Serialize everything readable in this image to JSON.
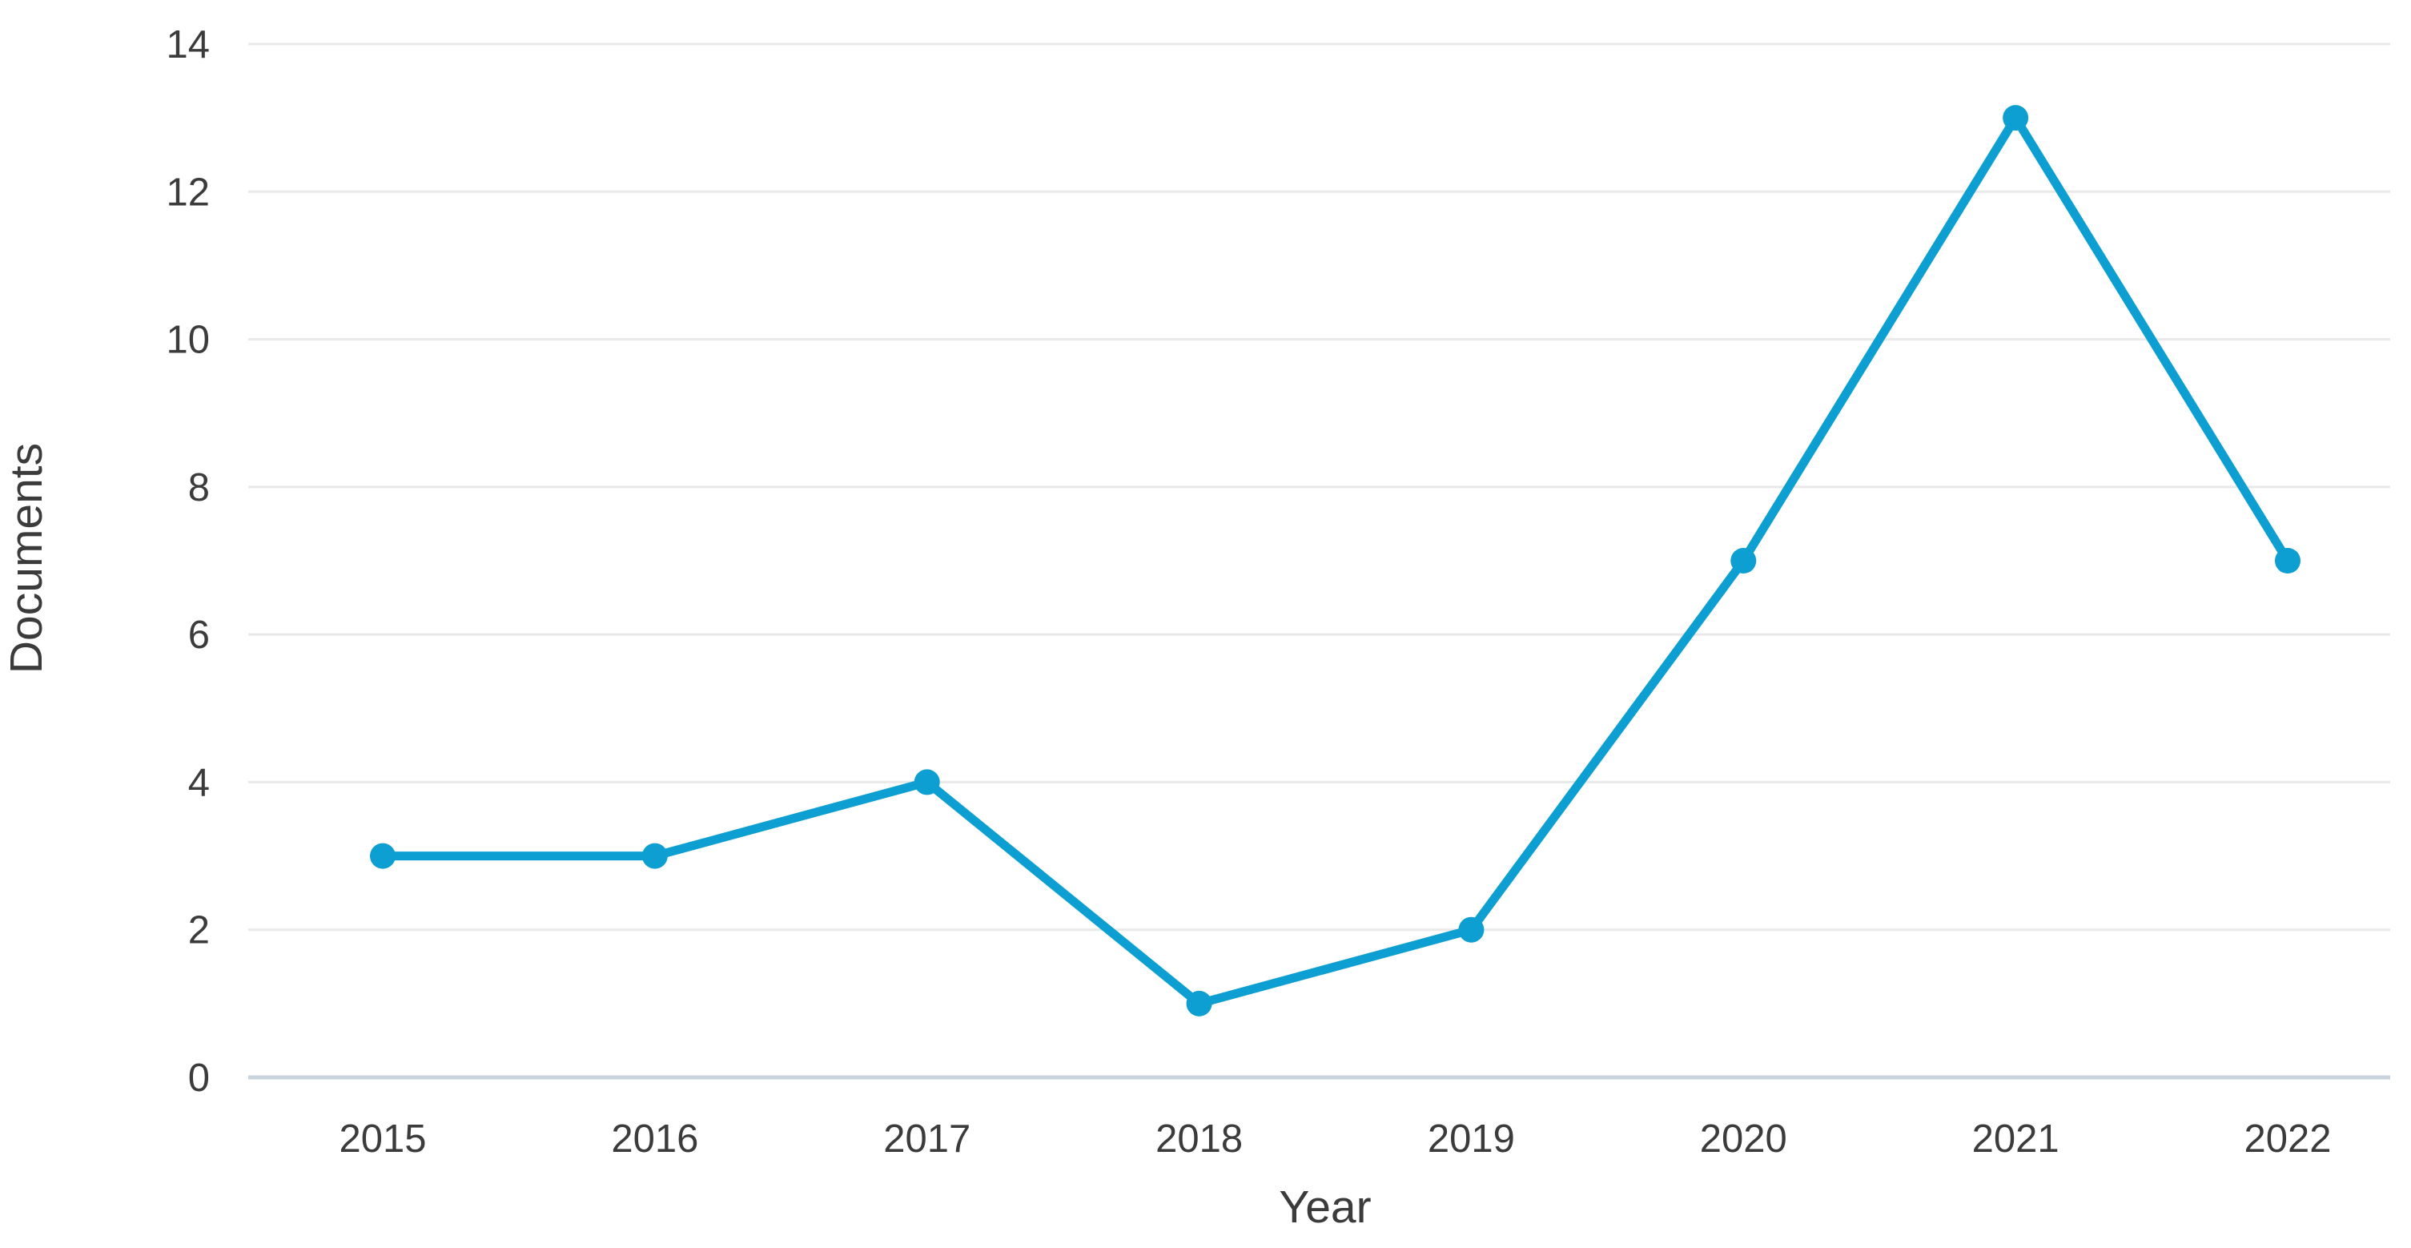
{
  "chart_data": {
    "type": "line",
    "title": "",
    "xlabel": "Year",
    "ylabel": "Documents",
    "categories": [
      "2015",
      "2016",
      "2017",
      "2018",
      "2019",
      "2020",
      "2021",
      "2022"
    ],
    "series": [
      {
        "name": "Documents",
        "values": [
          3,
          3,
          4,
          1,
          2,
          7,
          13,
          7
        ]
      }
    ],
    "ylim": [
      0,
      14
    ],
    "ytick_step": 2,
    "yticks": [
      0,
      2,
      4,
      6,
      8,
      10,
      12,
      14
    ],
    "grid": "horizontal",
    "legend": "none",
    "line_color": "#0d9fd2",
    "grid_color": "#e9e9e9",
    "axis_line_color": "#c9d3de",
    "text_color": "#3b3b3b"
  }
}
